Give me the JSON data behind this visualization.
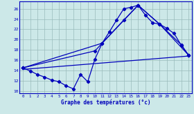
{
  "xlabel": "Graphe des températures (°c)",
  "background_color": "#cce8e8",
  "line_color": "#0000bb",
  "grid_color": "#99bbbb",
  "xlim": [
    -0.5,
    23.5
  ],
  "ylim": [
    9.5,
    27.5
  ],
  "ytick_values": [
    10,
    12,
    14,
    16,
    18,
    20,
    22,
    24,
    26
  ],
  "curve1_x": [
    0,
    1,
    2,
    3,
    4,
    5,
    6,
    7,
    8,
    9,
    10,
    11,
    12,
    13,
    14,
    15,
    16,
    17,
    18,
    19,
    20,
    21,
    22,
    23
  ],
  "curve1_y": [
    14.5,
    13.9,
    13.2,
    12.7,
    12.1,
    11.8,
    11.0,
    10.4,
    13.2,
    11.8,
    16.2,
    19.3,
    21.5,
    23.8,
    26.0,
    26.3,
    26.7,
    24.8,
    23.3,
    23.0,
    22.2,
    21.2,
    18.9,
    17.0
  ],
  "curve2_x": [
    0,
    10,
    14,
    16,
    19,
    22,
    23
  ],
  "curve2_y": [
    14.5,
    17.8,
    23.8,
    26.7,
    23.0,
    19.0,
    17.0
  ],
  "curve3_x": [
    0,
    23
  ],
  "curve3_y": [
    14.2,
    16.8
  ],
  "curve4_x": [
    0,
    11,
    16,
    19,
    23
  ],
  "curve4_y": [
    14.5,
    19.3,
    26.7,
    23.0,
    17.0
  ]
}
